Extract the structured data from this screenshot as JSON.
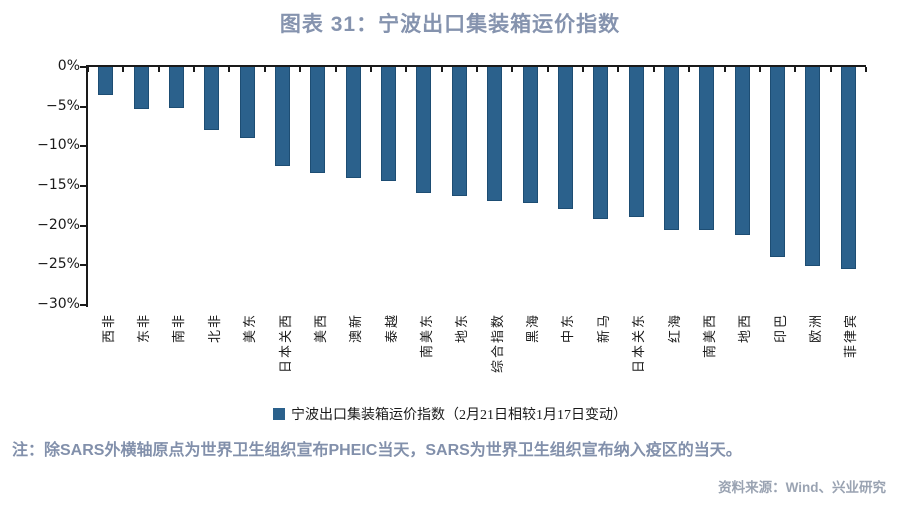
{
  "page": {
    "title": "图表 31：宁波出口集装箱运价指数",
    "note": "注：除SARS外横轴原点为世界卫生组织宣布PHEIC当天，SARS为世界卫生组织宣布纳入疫区的当天。",
    "source": "资料来源：Wind、兴业研究"
  },
  "colors": {
    "bar_fill": "#2b618c",
    "bar_edge": "#1d4d73",
    "axis": "#1a1a1a",
    "title_text": "#8593ae",
    "note_text": "#8290ab",
    "source_text": "#9aa3b2"
  },
  "chart_data": {
    "type": "bar",
    "title": "图表 31：宁波出口集装箱运价指数",
    "legend": [
      "宁波出口集装箱运价指数（2月21日相较1月17日变动）"
    ],
    "legend_position": "bottom",
    "categories": [
      "西非",
      "东非",
      "南非",
      "北非",
      "美东",
      "日本关西",
      "美西",
      "澳新",
      "泰越",
      "南美东",
      "地东",
      "综合指数",
      "黑海",
      "中东",
      "新马",
      "日本关东",
      "红海",
      "南美西",
      "地西",
      "印巴",
      "欧洲",
      "菲律宾"
    ],
    "values": [
      -3.5,
      -5.3,
      -5.2,
      -8.0,
      -8.9,
      -12.5,
      -13.4,
      -14.0,
      -14.4,
      -15.9,
      -16.3,
      -16.9,
      -17.2,
      -17.9,
      -19.1,
      -18.9,
      -20.5,
      -20.6,
      -21.2,
      -23.9,
      -25.1,
      -25.5
    ],
    "xlabel": "",
    "ylabel": "",
    "ylim": [
      -30,
      0
    ],
    "ytick_step": 5,
    "ytick_labels": [
      "0%",
      "−5%",
      "−10%",
      "−15%",
      "−20%",
      "−25%",
      "−30%"
    ],
    "grid": false
  }
}
